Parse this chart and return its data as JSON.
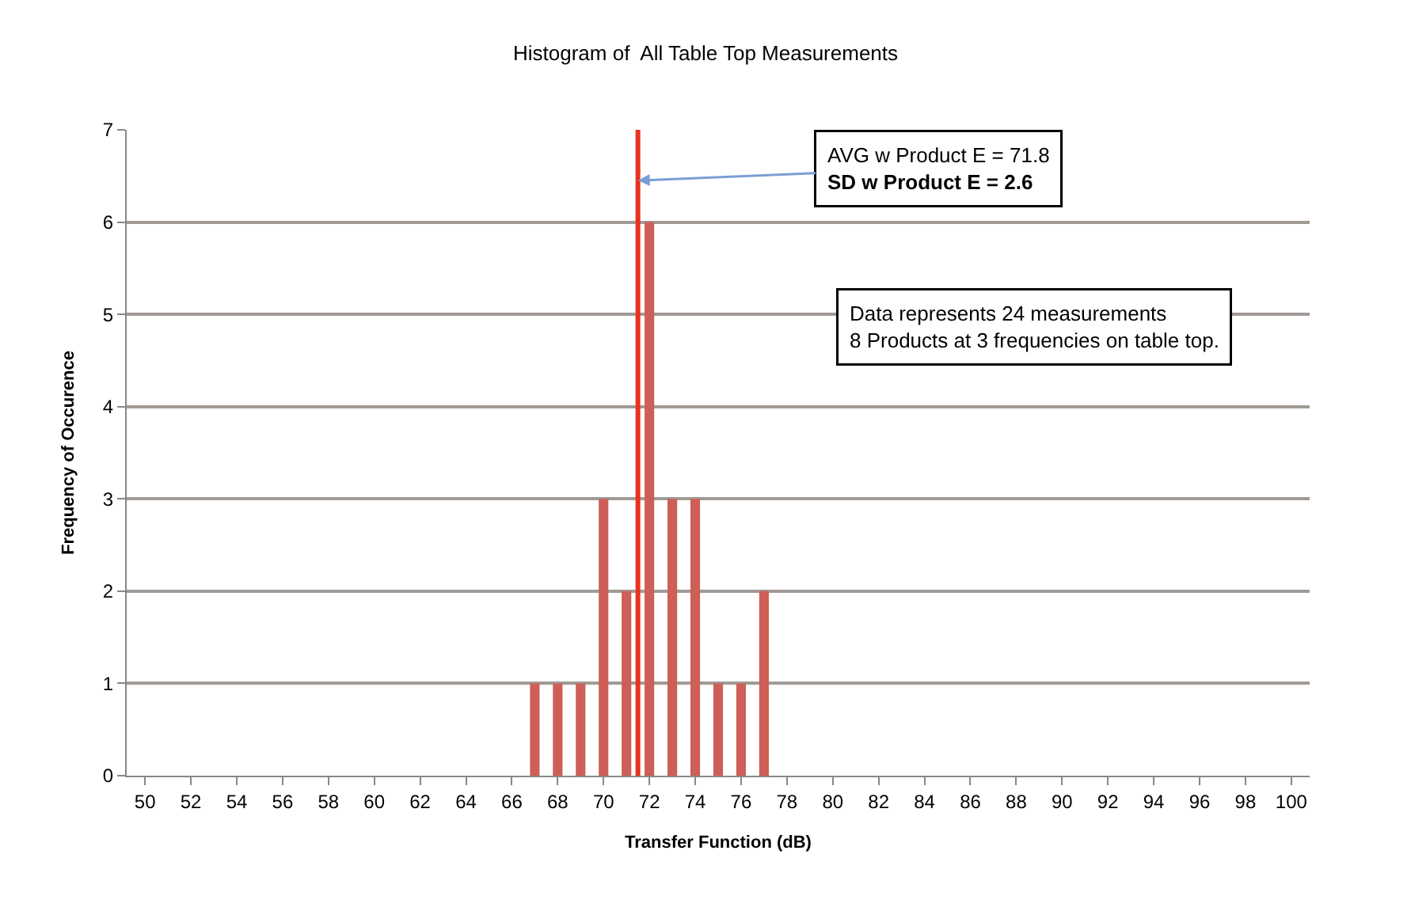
{
  "chart_data": {
    "type": "bar",
    "title": "Histogram of  All Table Top Measurements",
    "xlabel": "Transfer Function (dB)",
    "ylabel": "Frequency of Occurence",
    "x": [
      67,
      68,
      69,
      70,
      71,
      72,
      73,
      74,
      75,
      76,
      77
    ],
    "values": [
      1,
      1,
      1,
      3,
      2,
      6,
      3,
      3,
      1,
      1,
      2
    ],
    "color": "#cd5f57",
    "xlim": [
      49.2,
      100.8
    ],
    "xticks": [
      50,
      52,
      54,
      56,
      58,
      60,
      62,
      64,
      66,
      68,
      70,
      72,
      74,
      76,
      78,
      80,
      82,
      84,
      86,
      88,
      90,
      92,
      94,
      96,
      98,
      100
    ],
    "ylim": [
      0,
      7
    ],
    "yticks": [
      0,
      1,
      2,
      3,
      4,
      5,
      6,
      7
    ],
    "grid": "y",
    "legend": false,
    "ref_lines": [
      {
        "axis": "x",
        "value": 71.5,
        "color": "#e8321e"
      }
    ],
    "annotations": [
      {
        "text": "AVG w Product E = 71.8\nSD w Product E = 2.6",
        "x": 71.5,
        "y": 6.45
      },
      "Data represents 24 measurements\n8 Products at 3 frequencies on table top."
    ]
  }
}
